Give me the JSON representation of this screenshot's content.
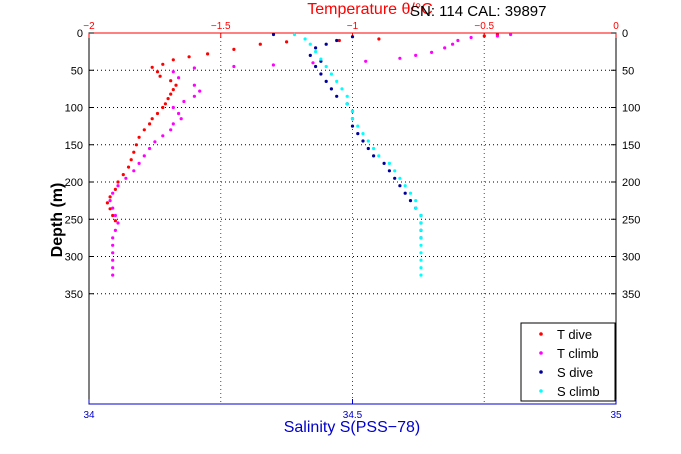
{
  "header": {
    "serial_text": "SN: 114  CAL: 39897"
  },
  "chart_data": {
    "type": "scatter",
    "ylabel": "Depth (m)",
    "x_top_label": "Temperature θ/°C",
    "x_bottom_label": "Salinity S(PSS−78)",
    "ylim": [
      0,
      350
    ],
    "y_reversed": true,
    "y_ticks": [
      0,
      50,
      100,
      150,
      200,
      250,
      300,
      350
    ],
    "y_tick_labels": [
      "0",
      "50",
      "100",
      "150",
      "200",
      "250",
      "300",
      "350"
    ],
    "temperature_axis": {
      "range": [
        -2,
        0
      ],
      "ticks": [
        -2,
        -1.5,
        -1,
        -0.5,
        0
      ],
      "tick_labels": [
        "−2",
        "−1.5",
        "−1",
        "−0.5",
        "0"
      ]
    },
    "salinity_axis": {
      "range": [
        34,
        35
      ],
      "ticks": [
        34,
        34.5,
        35
      ],
      "tick_labels": [
        "34",
        "34.5",
        "35"
      ]
    },
    "grid": true,
    "legend_position": "bottom-right",
    "series": [
      {
        "name": "T dive",
        "axis": "temperature",
        "color": "#ff0000",
        "marker": "dot",
        "points": [
          [
            -0.45,
            2
          ],
          [
            -0.5,
            4
          ],
          [
            -0.9,
            8
          ],
          [
            -1.05,
            10
          ],
          [
            -1.25,
            12
          ],
          [
            -1.35,
            15
          ],
          [
            -1.45,
            22
          ],
          [
            -1.55,
            28
          ],
          [
            -1.62,
            32
          ],
          [
            -1.68,
            36
          ],
          [
            -1.72,
            42
          ],
          [
            -1.76,
            46
          ],
          [
            -1.74,
            52
          ],
          [
            -1.73,
            58
          ],
          [
            -1.69,
            64
          ],
          [
            -1.67,
            70
          ],
          [
            -1.68,
            76
          ],
          [
            -1.69,
            82
          ],
          [
            -1.7,
            88
          ],
          [
            -1.71,
            95
          ],
          [
            -1.72,
            100
          ],
          [
            -1.74,
            108
          ],
          [
            -1.76,
            115
          ],
          [
            -1.77,
            122
          ],
          [
            -1.79,
            130
          ],
          [
            -1.81,
            140
          ],
          [
            -1.82,
            150
          ],
          [
            -1.83,
            160
          ],
          [
            -1.84,
            170
          ],
          [
            -1.85,
            180
          ],
          [
            -1.87,
            190
          ],
          [
            -1.89,
            200
          ],
          [
            -1.9,
            210
          ],
          [
            -1.92,
            220
          ],
          [
            -1.93,
            228
          ],
          [
            -1.92,
            236
          ],
          [
            -1.91,
            245
          ],
          [
            -1.9,
            252
          ]
        ]
      },
      {
        "name": "T climb",
        "axis": "temperature",
        "color": "#ff00ff",
        "marker": "dot",
        "points": [
          [
            -0.4,
            2
          ],
          [
            -0.45,
            4
          ],
          [
            -0.55,
            6
          ],
          [
            -0.6,
            10
          ],
          [
            -0.62,
            15
          ],
          [
            -0.65,
            20
          ],
          [
            -0.7,
            26
          ],
          [
            -0.76,
            30
          ],
          [
            -0.82,
            34
          ],
          [
            -0.95,
            38
          ],
          [
            -1.15,
            40
          ],
          [
            -1.3,
            43
          ],
          [
            -1.45,
            45
          ],
          [
            -1.6,
            47
          ],
          [
            -1.68,
            52
          ],
          [
            -1.66,
            60
          ],
          [
            -1.6,
            70
          ],
          [
            -1.58,
            78
          ],
          [
            -1.6,
            85
          ],
          [
            -1.64,
            92
          ],
          [
            -1.68,
            100
          ],
          [
            -1.66,
            108
          ],
          [
            -1.65,
            115
          ],
          [
            -1.68,
            122
          ],
          [
            -1.69,
            130
          ],
          [
            -1.72,
            138
          ],
          [
            -1.75,
            146
          ],
          [
            -1.77,
            155
          ],
          [
            -1.79,
            165
          ],
          [
            -1.81,
            175
          ],
          [
            -1.83,
            185
          ],
          [
            -1.86,
            195
          ],
          [
            -1.89,
            205
          ],
          [
            -1.91,
            215
          ],
          [
            -1.92,
            225
          ],
          [
            -1.91,
            235
          ],
          [
            -1.9,
            245
          ],
          [
            -1.89,
            255
          ],
          [
            -1.9,
            265
          ],
          [
            -1.91,
            275
          ],
          [
            -1.91,
            285
          ],
          [
            -1.91,
            295
          ],
          [
            -1.91,
            305
          ],
          [
            -1.91,
            315
          ],
          [
            -1.91,
            325
          ]
        ]
      },
      {
        "name": "S dive",
        "axis": "salinity",
        "color": "#000099",
        "marker": "dot",
        "points": [
          [
            34.35,
            2
          ],
          [
            34.5,
            5
          ],
          [
            34.47,
            10
          ],
          [
            34.45,
            15
          ],
          [
            34.43,
            20
          ],
          [
            34.42,
            30
          ],
          [
            34.44,
            38
          ],
          [
            34.43,
            45
          ],
          [
            34.44,
            55
          ],
          [
            34.45,
            65
          ],
          [
            34.46,
            75
          ],
          [
            34.47,
            85
          ],
          [
            34.49,
            95
          ],
          [
            34.5,
            105
          ],
          [
            34.5,
            115
          ],
          [
            34.5,
            125
          ],
          [
            34.51,
            135
          ],
          [
            34.52,
            145
          ],
          [
            34.53,
            155
          ],
          [
            34.54,
            165
          ],
          [
            34.56,
            175
          ],
          [
            34.57,
            185
          ],
          [
            34.58,
            195
          ],
          [
            34.59,
            205
          ],
          [
            34.6,
            215
          ],
          [
            34.61,
            225
          ],
          [
            34.62,
            235
          ],
          [
            34.63,
            245
          ],
          [
            34.63,
            255
          ],
          [
            34.63,
            265
          ],
          [
            34.63,
            275
          ]
        ]
      },
      {
        "name": "S climb",
        "axis": "salinity",
        "color": "#00ffff",
        "marker": "dot",
        "points": [
          [
            34.39,
            2
          ],
          [
            34.41,
            8
          ],
          [
            34.42,
            15
          ],
          [
            34.43,
            25
          ],
          [
            34.44,
            35
          ],
          [
            34.45,
            45
          ],
          [
            34.46,
            55
          ],
          [
            34.47,
            65
          ],
          [
            34.48,
            75
          ],
          [
            34.49,
            85
          ],
          [
            34.49,
            95
          ],
          [
            34.5,
            105
          ],
          [
            34.5,
            115
          ],
          [
            34.51,
            125
          ],
          [
            34.52,
            135
          ],
          [
            34.53,
            145
          ],
          [
            34.54,
            155
          ],
          [
            34.55,
            165
          ],
          [
            34.57,
            175
          ],
          [
            34.58,
            185
          ],
          [
            34.59,
            195
          ],
          [
            34.6,
            205
          ],
          [
            34.61,
            215
          ],
          [
            34.62,
            225
          ],
          [
            34.62,
            235
          ],
          [
            34.63,
            245
          ],
          [
            34.63,
            255
          ],
          [
            34.63,
            265
          ],
          [
            34.63,
            275
          ],
          [
            34.63,
            285
          ],
          [
            34.63,
            295
          ],
          [
            34.63,
            305
          ],
          [
            34.63,
            315
          ],
          [
            34.63,
            325
          ]
        ]
      }
    ]
  }
}
